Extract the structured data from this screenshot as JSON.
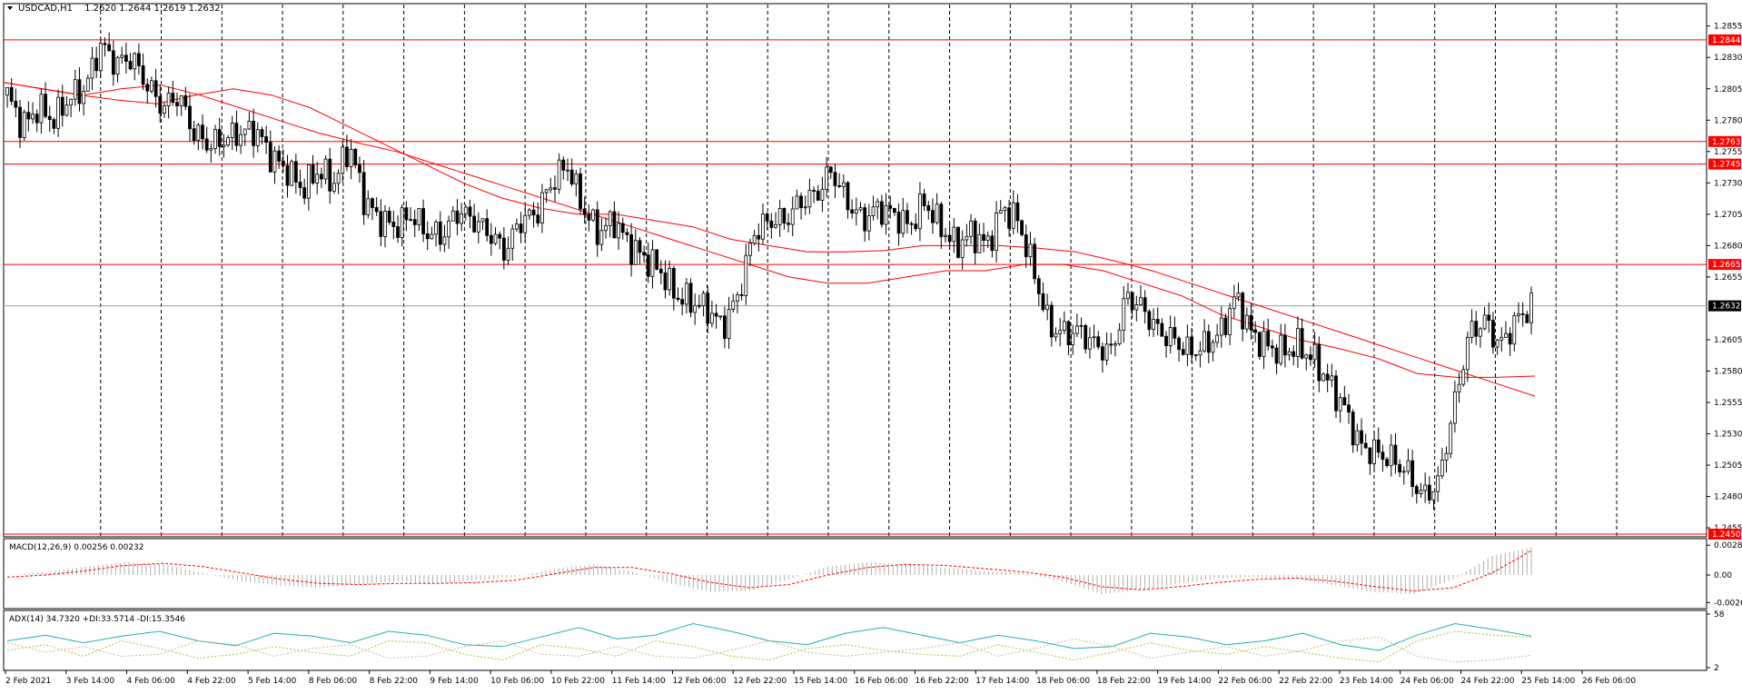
{
  "symbol_header": {
    "symbol": "USDCAD,H1",
    "ohlc": "1.2620 1.2644 1.2619 1.2632"
  },
  "colors": {
    "candle": "#000000",
    "ma": "#ff0000",
    "hline": "#ff0000",
    "macd_hist": "#b0b0b0",
    "macd_signal": "#ff0000",
    "adx_main": "#20b2aa",
    "adx_plus": "#9acd32",
    "adx_minus": "#d2b48c",
    "grid": "#000000"
  },
  "chart_data": [
    {
      "type": "line",
      "title": "USDCAD,H1 1.2620 1.2644 1.2619 1.2632",
      "ylim": [
        1.245,
        1.287
      ],
      "y_ticks": [
        "1.2855",
        "1.2830",
        "1.2805",
        "1.2780",
        "1.2755",
        "1.2730",
        "1.2705",
        "1.2680",
        "1.2655",
        "1.2605",
        "1.2580",
        "1.2555",
        "1.2530",
        "1.2505",
        "1.2480",
        "1.2455"
      ],
      "horizontal_levels": [
        {
          "value": 1.2844,
          "label": "1.2844"
        },
        {
          "value": 1.2763,
          "label": "1.2763"
        },
        {
          "value": 1.2745,
          "label": "1.2745"
        },
        {
          "value": 1.2665,
          "label": "1.2665"
        },
        {
          "value": 1.245,
          "label": "1.2450"
        }
      ],
      "current_price": {
        "value": 1.2632,
        "label": "1.2632"
      },
      "x_labels": [
        "2 Feb 2021",
        "3 Feb 14:00",
        "4 Feb 06:00",
        "4 Feb 22:00",
        "5 Feb 14:00",
        "8 Feb 06:00",
        "8 Feb 22:00",
        "9 Feb 14:00",
        "10 Feb 06:00",
        "10 Feb 22:00",
        "11 Feb 14:00",
        "12 Feb 06:00",
        "12 Feb 22:00",
        "15 Feb 14:00",
        "16 Feb 06:00",
        "16 Feb 22:00",
        "17 Feb 14:00",
        "18 Feb 06:00",
        "18 Feb 22:00",
        "19 Feb 14:00",
        "22 Feb 06:00",
        "22 Feb 22:00",
        "23 Feb 14:00",
        "24 Feb 06:00",
        "24 Feb 22:00",
        "25 Feb 14:00",
        "26 Feb 06:00"
      ],
      "price_path": [
        1.28,
        1.2775,
        1.279,
        1.278,
        1.2798,
        1.2805,
        1.284,
        1.2825,
        1.283,
        1.2808,
        1.279,
        1.28,
        1.277,
        1.276,
        1.2765,
        1.277,
        1.2772,
        1.275,
        1.274,
        1.2725,
        1.274,
        1.273,
        1.276,
        1.2715,
        1.27,
        1.2695,
        1.2705,
        1.269,
        1.2688,
        1.2708,
        1.27,
        1.269,
        1.2675,
        1.27,
        1.2705,
        1.273,
        1.2745,
        1.271,
        1.269,
        1.27,
        1.268,
        1.267,
        1.266,
        1.264,
        1.2635,
        1.263,
        1.2615,
        1.264,
        1.269,
        1.27,
        1.27,
        1.2715,
        1.272,
        1.274,
        1.2715,
        1.27,
        1.271,
        1.2705,
        1.2695,
        1.2715,
        1.2695,
        1.268,
        1.269,
        1.268,
        1.271,
        1.27,
        1.266,
        1.2615,
        1.261,
        1.2612,
        1.26,
        1.2595,
        1.264,
        1.263,
        1.2612,
        1.2605,
        1.2595,
        1.26,
        1.261,
        1.264,
        1.261,
        1.26,
        1.2595,
        1.26,
        1.259,
        1.257,
        1.255,
        1.252,
        1.2515,
        1.251,
        1.25,
        1.248,
        1.249,
        1.255,
        1.261,
        1.262,
        1.26,
        1.262,
        1.2632
      ],
      "series": [
        {
          "name": "",
          "values": [
            1.281,
            1.2805,
            1.28,
            1.2805,
            1.2808,
            1.28,
            1.279,
            1.278,
            1.277,
            1.2762,
            1.2755,
            1.2745,
            1.2735,
            1.2725,
            1.2715,
            1.2705,
            1.2695,
            1.2685,
            1.2675,
            1.2665,
            1.2655,
            1.265,
            1.265,
            1.2655,
            1.266,
            1.266,
            1.2665,
            1.2665,
            1.266,
            1.265,
            1.264,
            1.2625,
            1.2615,
            1.2605,
            1.2598,
            1.259,
            1.2578,
            1.2575,
            1.2575,
            1.2576
          ]
        },
        {
          "name": "",
          "values": [
            1.281,
            1.2805,
            1.28,
            1.2796,
            1.2793,
            1.28,
            1.2805,
            1.28,
            1.279,
            1.2775,
            1.276,
            1.2745,
            1.273,
            1.2718,
            1.271,
            1.2705,
            1.2705,
            1.27,
            1.2695,
            1.2685,
            1.268,
            1.2675,
            1.2675,
            1.2676,
            1.268,
            1.268,
            1.268,
            1.2678,
            1.2675,
            1.2668,
            1.266,
            1.265,
            1.264,
            1.263,
            1.262,
            1.261,
            1.26,
            1.259,
            1.258,
            1.257,
            1.256
          ]
        }
      ]
    },
    {
      "type": "bar",
      "title": "MACD(12,26,9) 0.00256 0.00232",
      "ylim": [
        -0.003,
        0.003
      ],
      "y_ticks": [
        "0.00281",
        "0.00",
        "-0.0026"
      ],
      "series": [
        {
          "name": "",
          "values": [
            0.0,
            0.0003,
            0.0008,
            0.0012,
            0.001,
            0.0002,
            -0.0006,
            -0.001,
            -0.0012,
            -0.0009,
            -0.0006,
            -0.0008,
            -0.0005,
            -0.0002,
            0.0006,
            0.001,
            0.0003,
            -0.0008,
            -0.0016,
            -0.0015,
            -0.0004,
            0.0008,
            0.0012,
            0.001,
            0.0007,
            0.0004,
            0.0002,
            -0.0006,
            -0.0018,
            -0.0014,
            -0.0008,
            -0.0003,
            -0.0002,
            -0.0004,
            -0.001,
            -0.0016,
            -0.0018,
            -0.0004,
            0.0018,
            0.0026
          ]
        },
        {
          "name": "",
          "values": [
            -0.0002,
            0.0,
            0.0004,
            0.0009,
            0.0011,
            0.0008,
            0.0002,
            -0.0004,
            -0.0008,
            -0.0009,
            -0.0008,
            -0.0008,
            -0.0007,
            -0.0005,
            0.0001,
            0.0007,
            0.0007,
            0.0001,
            -0.0007,
            -0.0012,
            -0.0009,
            0.0,
            0.0007,
            0.001,
            0.0009,
            0.0006,
            0.0003,
            -0.0002,
            -0.0011,
            -0.0014,
            -0.0011,
            -0.0007,
            -0.0004,
            -0.0003,
            -0.0006,
            -0.0011,
            -0.0015,
            -0.0012,
            0.0002,
            0.0023
          ]
        }
      ]
    },
    {
      "type": "line",
      "title": "ADX(14) 34.7320 +DI:33.5714 -DI:15.3546",
      "ylim": [
        2,
        58
      ],
      "y_ticks": [
        "58",
        "2"
      ],
      "series": [
        {
          "name": "",
          "values": [
            30,
            36,
            28,
            35,
            40,
            30,
            25,
            38,
            35,
            28,
            40,
            36,
            26,
            24,
            34,
            44,
            32,
            36,
            48,
            40,
            30,
            26,
            38,
            44,
            36,
            28,
            36,
            30,
            22,
            24,
            38,
            34,
            26,
            30,
            38,
            26,
            20,
            36,
            48,
            42,
            35
          ]
        },
        {
          "name": "",
          "values": [
            20,
            26,
            14,
            30,
            22,
            12,
            16,
            24,
            18,
            14,
            30,
            28,
            16,
            10,
            26,
            22,
            14,
            30,
            24,
            14,
            10,
            22,
            26,
            20,
            16,
            14,
            26,
            18,
            10,
            18,
            28,
            20,
            16,
            24,
            18,
            12,
            8,
            30,
            40,
            36,
            34
          ]
        },
        {
          "name": "",
          "values": [
            28,
            18,
            24,
            14,
            16,
            30,
            26,
            14,
            22,
            26,
            12,
            14,
            24,
            30,
            16,
            14,
            24,
            14,
            12,
            20,
            30,
            18,
            14,
            18,
            22,
            28,
            14,
            22,
            32,
            24,
            12,
            18,
            24,
            14,
            20,
            30,
            34,
            14,
            8,
            10,
            15
          ]
        }
      ]
    }
  ]
}
